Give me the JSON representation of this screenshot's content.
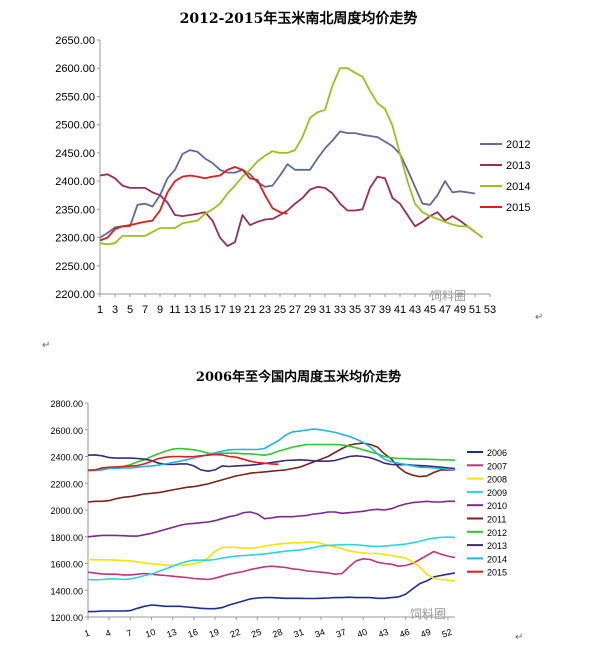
{
  "chart_data": [
    {
      "type": "line",
      "title": "2012-2015年玉米南北周度均价走势",
      "xlabel": "",
      "ylabel": "",
      "ylim": [
        2200,
        2650
      ],
      "yticks": [
        "2650.00",
        "2600.00",
        "2550.00",
        "2500.00",
        "2450.00",
        "2400.00",
        "2350.00",
        "2300.00",
        "2250.00",
        "2200.00"
      ],
      "xticks": [
        "1",
        "3",
        "5",
        "7",
        "9",
        "11",
        "13",
        "15",
        "17",
        "19",
        "21",
        "23",
        "25",
        "27",
        "29",
        "31",
        "33",
        "35",
        "37",
        "39",
        "41",
        "43",
        "45",
        "47",
        "49",
        "51",
        "53"
      ],
      "x_range": [
        1,
        53
      ],
      "legend_position": "right",
      "watermark": "饲料圈",
      "series": [
        {
          "name": "2012",
          "color": "#5e6a99",
          "values": [
            2300,
            2308,
            2318,
            2320,
            2320,
            2358,
            2360,
            2355,
            2375,
            2405,
            2420,
            2448,
            2455,
            2452,
            2440,
            2432,
            2420,
            2415,
            2415,
            2420,
            2412,
            2398,
            2390,
            2392,
            2410,
            2430,
            2420,
            2420,
            2420,
            2440,
            2458,
            2472,
            2488,
            2485,
            2485,
            2482,
            2480,
            2478,
            2470,
            2462,
            2448,
            2420,
            2390,
            2360,
            2358,
            2375,
            2400,
            2380,
            2382,
            2380,
            2378
          ]
        },
        {
          "name": "2013",
          "color": "#9c2d58",
          "values": [
            2410,
            2412,
            2405,
            2392,
            2388,
            2388,
            2388,
            2380,
            2375,
            2362,
            2340,
            2338,
            2340,
            2342,
            2345,
            2330,
            2300,
            2285,
            2292,
            2340,
            2322,
            2328,
            2332,
            2333,
            2340,
            2348,
            2360,
            2370,
            2385,
            2390,
            2388,
            2378,
            2360,
            2348,
            2348,
            2350,
            2388,
            2408,
            2405,
            2370,
            2360,
            2340,
            2320,
            2328,
            2338,
            2345,
            2330,
            2338,
            2330,
            2320,
            2310
          ]
        },
        {
          "name": "2014",
          "color": "#99c31a",
          "values": [
            2290,
            2288,
            2290,
            2303,
            2303,
            2303,
            2303,
            2310,
            2317,
            2317,
            2317,
            2325,
            2328,
            2330,
            2342,
            2350,
            2360,
            2378,
            2392,
            2408,
            2420,
            2435,
            2445,
            2453,
            2450,
            2450,
            2455,
            2478,
            2512,
            2522,
            2526,
            2570,
            2600,
            2600,
            2592,
            2585,
            2560,
            2538,
            2528,
            2498,
            2448,
            2400,
            2360,
            2345,
            2338,
            2333,
            2328,
            2323,
            2320,
            2320,
            2310,
            2300
          ]
        },
        {
          "name": "2015",
          "color": "#e21b1b",
          "values": [
            2295,
            2300,
            2315,
            2320,
            2322,
            2325,
            2328,
            2330,
            2348,
            2380,
            2400,
            2408,
            2410,
            2408,
            2405,
            2408,
            2410,
            2420,
            2425,
            2420,
            2405,
            2402,
            2375,
            2352,
            2345,
            2342
          ]
        }
      ]
    },
    {
      "type": "line",
      "title": "2006年至今国内周度玉米均价走势",
      "xlabel": "",
      "ylabel": "",
      "ylim": [
        1200,
        2800
      ],
      "yticks": [
        "2800.00",
        "2600.00",
        "2400.00",
        "2200.00",
        "2000.00",
        "1800.00",
        "1600.00",
        "1400.00",
        "1200.00"
      ],
      "xticks": [
        "1",
        "4",
        "7",
        "10",
        "13",
        "16",
        "19",
        "22",
        "25",
        "28",
        "31",
        "34",
        "37",
        "40",
        "43",
        "46",
        "49",
        "52"
      ],
      "x_range": [
        1,
        53
      ],
      "legend_position": "right",
      "watermark": "饲料圈",
      "series": [
        {
          "name": "2006",
          "color": "#1f2f8c",
          "values": [
            1240,
            1240,
            1245,
            1245,
            1245,
            1245,
            1248,
            1265,
            1280,
            1290,
            1285,
            1280,
            1280,
            1280,
            1275,
            1270,
            1265,
            1262,
            1262,
            1270,
            1290,
            1305,
            1320,
            1335,
            1342,
            1345,
            1345,
            1343,
            1340,
            1340,
            1340,
            1338,
            1338,
            1340,
            1342,
            1345,
            1345,
            1348,
            1345,
            1345,
            1345,
            1340,
            1340,
            1345,
            1350,
            1370,
            1410,
            1450,
            1470,
            1500,
            1510,
            1520,
            1530
          ]
        },
        {
          "name": "2007",
          "color": "#c0357a",
          "values": [
            1535,
            1528,
            1522,
            1520,
            1520,
            1515,
            1515,
            1520,
            1525,
            1520,
            1515,
            1510,
            1505,
            1500,
            1495,
            1488,
            1485,
            1480,
            1490,
            1505,
            1520,
            1530,
            1540,
            1555,
            1565,
            1575,
            1580,
            1575,
            1570,
            1560,
            1555,
            1545,
            1540,
            1535,
            1530,
            1520,
            1525,
            1575,
            1620,
            1635,
            1630,
            1610,
            1600,
            1595,
            1580,
            1585,
            1600,
            1630,
            1660,
            1690,
            1670,
            1655,
            1645
          ]
        },
        {
          "name": "2008",
          "color": "#f5e400",
          "values": [
            1630,
            1628,
            1628,
            1628,
            1625,
            1622,
            1620,
            1612,
            1605,
            1598,
            1595,
            1588,
            1585,
            1585,
            1590,
            1598,
            1610,
            1640,
            1690,
            1720,
            1722,
            1720,
            1715,
            1715,
            1720,
            1730,
            1738,
            1745,
            1750,
            1755,
            1755,
            1760,
            1760,
            1750,
            1735,
            1725,
            1710,
            1695,
            1685,
            1680,
            1675,
            1675,
            1668,
            1660,
            1650,
            1640,
            1612,
            1575,
            1520,
            1490,
            1480,
            1475,
            1470
          ]
        },
        {
          "name": "2009",
          "color": "#26d6e6",
          "values": [
            1480,
            1478,
            1480,
            1485,
            1485,
            1480,
            1485,
            1495,
            1510,
            1520,
            1540,
            1560,
            1580,
            1600,
            1615,
            1625,
            1625,
            1625,
            1630,
            1640,
            1648,
            1655,
            1660,
            1662,
            1668,
            1670,
            1678,
            1685,
            1692,
            1698,
            1700,
            1710,
            1720,
            1730,
            1735,
            1738,
            1740,
            1742,
            1740,
            1735,
            1730,
            1728,
            1730,
            1735,
            1740,
            1745,
            1755,
            1765,
            1780,
            1790,
            1795,
            1798,
            1795
          ]
        },
        {
          "name": "2010",
          "color": "#7a2a8c",
          "values": [
            1800,
            1805,
            1810,
            1810,
            1810,
            1808,
            1805,
            1805,
            1815,
            1825,
            1840,
            1855,
            1870,
            1885,
            1895,
            1900,
            1905,
            1910,
            1920,
            1935,
            1950,
            1960,
            1980,
            1985,
            1970,
            1935,
            1940,
            1950,
            1950,
            1950,
            1955,
            1960,
            1970,
            1975,
            1985,
            1985,
            1975,
            1980,
            1985,
            1990,
            2000,
            2005,
            2000,
            2010,
            2030,
            2045,
            2055,
            2060,
            2065,
            2060,
            2060,
            2065,
            2065
          ]
        },
        {
          "name": "2011",
          "color": "#7a2418",
          "values": [
            2060,
            2065,
            2065,
            2070,
            2085,
            2095,
            2100,
            2110,
            2120,
            2125,
            2130,
            2140,
            2150,
            2160,
            2170,
            2175,
            2185,
            2195,
            2210,
            2225,
            2240,
            2255,
            2265,
            2275,
            2280,
            2285,
            2290,
            2295,
            2300,
            2310,
            2320,
            2340,
            2360,
            2380,
            2400,
            2430,
            2460,
            2485,
            2495,
            2500,
            2490,
            2470,
            2420,
            2380,
            2320,
            2280,
            2260,
            2250,
            2255,
            2280,
            2300,
            2300,
            2300
          ]
        },
        {
          "name": "2012",
          "color": "#2ec82e",
          "values": [
            2300,
            2300,
            2310,
            2318,
            2320,
            2325,
            2338,
            2360,
            2375,
            2400,
            2420,
            2440,
            2455,
            2460,
            2455,
            2450,
            2440,
            2425,
            2420,
            2425,
            2425,
            2425,
            2420,
            2420,
            2415,
            2410,
            2420,
            2440,
            2455,
            2470,
            2480,
            2490,
            2490,
            2490,
            2490,
            2490,
            2485,
            2478,
            2465,
            2450,
            2435,
            2420,
            2400,
            2390,
            2385,
            2385,
            2380,
            2380,
            2380,
            2378,
            2375,
            2375,
            2372
          ]
        },
        {
          "name": "2013",
          "color": "#3a2a78",
          "values": [
            2410,
            2412,
            2405,
            2392,
            2388,
            2388,
            2388,
            2385,
            2380,
            2370,
            2350,
            2342,
            2340,
            2345,
            2345,
            2330,
            2300,
            2290,
            2300,
            2330,
            2325,
            2330,
            2332,
            2335,
            2340,
            2348,
            2355,
            2362,
            2370,
            2372,
            2375,
            2372,
            2368,
            2365,
            2365,
            2370,
            2385,
            2400,
            2405,
            2400,
            2390,
            2372,
            2350,
            2340,
            2338,
            2340,
            2335,
            2332,
            2330,
            2325,
            2320,
            2315,
            2310
          ]
        },
        {
          "name": "2014",
          "color": "#20b5e8",
          "values": [
            2295,
            2295,
            2300,
            2310,
            2312,
            2315,
            2315,
            2320,
            2325,
            2330,
            2335,
            2345,
            2355,
            2365,
            2375,
            2390,
            2400,
            2415,
            2428,
            2440,
            2450,
            2452,
            2453,
            2452,
            2452,
            2460,
            2490,
            2520,
            2560,
            2585,
            2590,
            2598,
            2605,
            2600,
            2590,
            2580,
            2565,
            2550,
            2530,
            2505,
            2470,
            2420,
            2380,
            2360,
            2350,
            2340,
            2330,
            2320,
            2318,
            2315,
            2310,
            2305,
            2300
          ]
        },
        {
          "name": "2015",
          "color": "#e21b1b",
          "values": [
            2295,
            2300,
            2315,
            2320,
            2322,
            2325,
            2328,
            2332,
            2345,
            2365,
            2385,
            2395,
            2400,
            2400,
            2398,
            2400,
            2405,
            2410,
            2415,
            2412,
            2400,
            2395,
            2380,
            2365,
            2355,
            2350,
            2345,
            2342
          ]
        }
      ]
    }
  ]
}
